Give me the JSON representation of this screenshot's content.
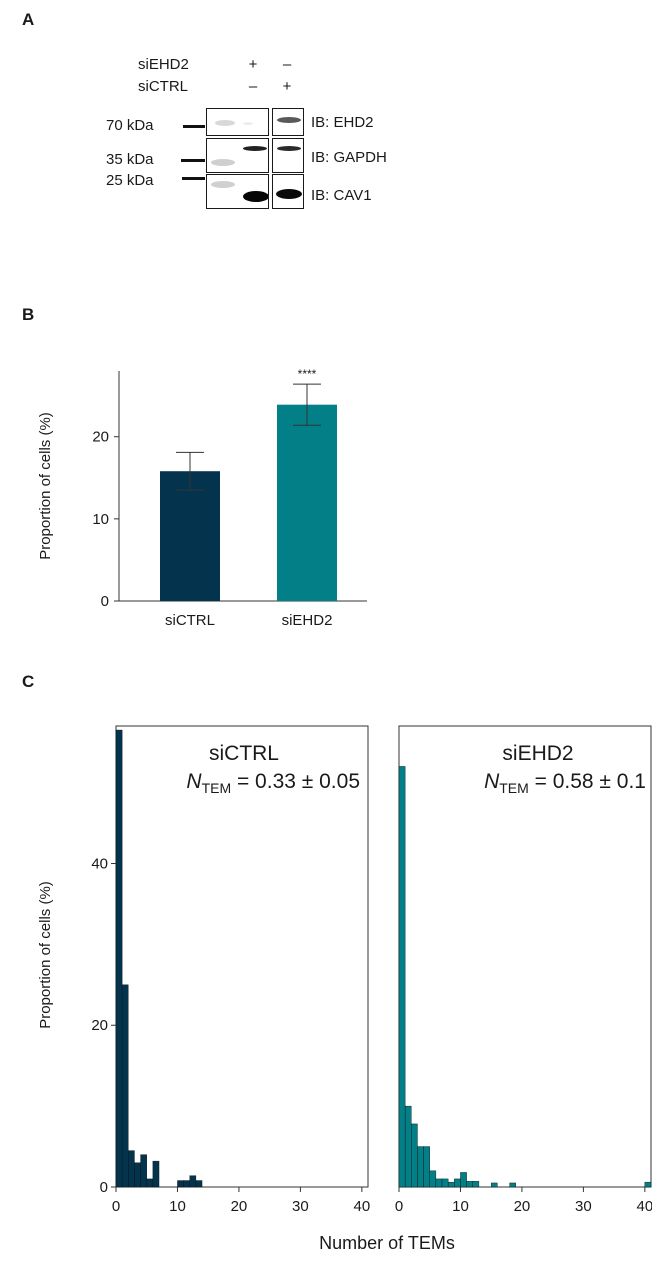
{
  "panels": {
    "a": "A",
    "b": "B",
    "c": "C"
  },
  "western_blot": {
    "conditions": [
      {
        "name": "siEHD2",
        "signs": [
          "+",
          "–"
        ]
      },
      {
        "name": "siCTRL",
        "signs": [
          "–",
          "+"
        ]
      }
    ],
    "markers": [
      "70 kDa",
      "35 kDa",
      "25 kDa"
    ],
    "immunoblots": [
      "IB: EHD2",
      "IB: GAPDH",
      "IB: CAV1"
    ]
  },
  "chart_data": [
    {
      "type": "bar",
      "panel": "B",
      "categories": [
        "siCTRL",
        "siEHD2"
      ],
      "values": [
        15.8,
        23.9
      ],
      "errors": [
        2.3,
        2.5
      ],
      "colors": [
        "#04344d",
        "#037f87"
      ],
      "significance": [
        "",
        "****"
      ],
      "ylabel": "Proportion of cells (%)",
      "ylim": [
        0,
        28
      ],
      "yticks": [
        0,
        10,
        20
      ]
    },
    {
      "type": "bar",
      "panel": "C",
      "subtype": "histogram",
      "title": "siCTRL",
      "annotation": {
        "symbol": "N",
        "subscript": "TEM",
        "value": "= 0.33 ± 0.05"
      },
      "color": "#04344d",
      "xlim": [
        0,
        41
      ],
      "ylim": [
        0,
        57
      ],
      "xticks": [
        0,
        10,
        20,
        30,
        40
      ],
      "yticks": [
        0,
        20,
        40
      ],
      "bins": [
        [
          0,
          56.5
        ],
        [
          1,
          25
        ],
        [
          2,
          4.5
        ],
        [
          3,
          3
        ],
        [
          4,
          4
        ],
        [
          5,
          1
        ],
        [
          6,
          3.2
        ],
        [
          10,
          0.8
        ],
        [
          11,
          0.8
        ],
        [
          12,
          1.4
        ],
        [
          13,
          0.8
        ]
      ],
      "ylabel": "Proportion of cells (%)"
    },
    {
      "type": "bar",
      "panel": "C",
      "subtype": "histogram",
      "title": "siEHD2",
      "annotation": {
        "symbol": "N",
        "subscript": "TEM",
        "value": "= 0.58 ± 0.1"
      },
      "color": "#037f87",
      "xlim": [
        0,
        41
      ],
      "ylim": [
        0,
        57
      ],
      "xticks": [
        0,
        10,
        20,
        30,
        40
      ],
      "yticks": [],
      "bins": [
        [
          0,
          52
        ],
        [
          1,
          10
        ],
        [
          2,
          7.8
        ],
        [
          3,
          5
        ],
        [
          4,
          5
        ],
        [
          5,
          2
        ],
        [
          6,
          1
        ],
        [
          7,
          1
        ],
        [
          8,
          0.6
        ],
        [
          9,
          1
        ],
        [
          10,
          1.8
        ],
        [
          11,
          0.7
        ],
        [
          12,
          0.7
        ],
        [
          15,
          0.5
        ],
        [
          18,
          0.5
        ],
        [
          40,
          0.6
        ]
      ],
      "xlabel": "Number of TEMs"
    }
  ]
}
